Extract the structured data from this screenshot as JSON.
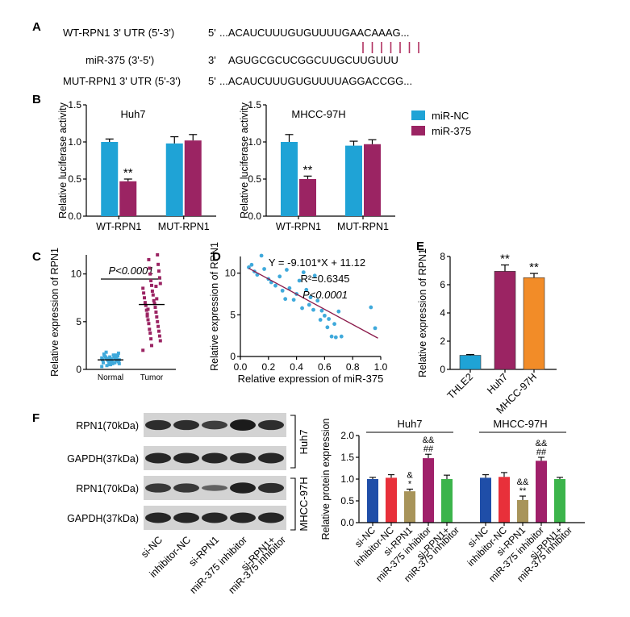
{
  "panels": {
    "A": "A",
    "B": "B",
    "C": "C",
    "D": "D",
    "E": "E",
    "F": "F"
  },
  "panel_a": {
    "rows": [
      {
        "label": "WT-RPN1 3' UTR (5'-3')",
        "prefix": "5'",
        "seq": "...ACAUCUUUGUGUUUUGAACAAAG..."
      },
      {
        "label": "miR-375 (3'-5')",
        "prefix": "3'",
        "seq": "AGUGCGCUCGGCUUGCUUGUUU"
      },
      {
        "label": "MUT-RPN1 3' UTR (5'-3')",
        "prefix": "5'",
        "seq": "...ACAUCUUUGUGUUUUAGGACCGG..."
      }
    ],
    "pair_color": "#b03060"
  },
  "colors": {
    "nc": "#1fa3d6",
    "mir": "#9b2463",
    "d_point": "#3fa9db",
    "d_line": "#8b1a4a",
    "c_point": "#9b2463",
    "c_normal": "#3fa9db",
    "e_thle2": "#1fa3d6",
    "e_huh7": "#9b2463",
    "e_mhcc": "#f28c28",
    "f_si_nc": "#1f4ea8",
    "f_inh_nc": "#e8303a",
    "f_si_rpn1": "#a8945a",
    "f_mir_inh": "#a0206a",
    "f_combo": "#3cb44b"
  },
  "legend": {
    "series1": "miR-NC",
    "series2": "miR-375"
  },
  "chart_data": [
    {
      "id": "B-Huh7",
      "type": "bar",
      "title": "Huh7",
      "ylabel": "Relative luciferase activity",
      "ylim": [
        0,
        1.5
      ],
      "yticks": [
        "0.0",
        "0.5",
        "1.0",
        "1.5"
      ],
      "categories": [
        "WT-RPN1",
        "MUT-RPN1"
      ],
      "series": [
        {
          "name": "miR-NC",
          "values": [
            1.0,
            0.98
          ],
          "err": [
            0.04,
            0.09
          ]
        },
        {
          "name": "miR-375",
          "values": [
            0.47,
            1.02
          ],
          "err": [
            0.03,
            0.08
          ]
        }
      ],
      "annotations": [
        "**",
        ""
      ]
    },
    {
      "id": "B-MHCC-97H",
      "type": "bar",
      "title": "MHCC-97H",
      "ylabel": "Relative luciferase activity",
      "ylim": [
        0,
        1.5
      ],
      "yticks": [
        "0.0",
        "0.5",
        "1.0",
        "1.5"
      ],
      "categories": [
        "WT-RPN1",
        "MUT-RPN1"
      ],
      "series": [
        {
          "name": "miR-NC",
          "values": [
            1.0,
            0.95
          ],
          "err": [
            0.1,
            0.06
          ]
        },
        {
          "name": "miR-375",
          "values": [
            0.5,
            0.97
          ],
          "err": [
            0.04,
            0.06
          ]
        }
      ],
      "annotations": [
        "**",
        ""
      ]
    },
    {
      "id": "C",
      "type": "scatter",
      "ylabel": "Relative expression of RPN1",
      "ylim": [
        0,
        12
      ],
      "yticks": [
        "0",
        "5",
        "10"
      ],
      "categories": [
        "Normal",
        "Tumor"
      ],
      "p_text": "P<0.0001",
      "groups": [
        {
          "name": "Normal",
          "mean": 1.0,
          "values": [
            0.3,
            0.5,
            0.6,
            0.7,
            0.8,
            0.8,
            0.9,
            0.9,
            1.0,
            1.0,
            1.0,
            1.1,
            1.1,
            1.2,
            1.2,
            1.3,
            1.3,
            1.4,
            1.5,
            1.6,
            0.6,
            0.7,
            0.9,
            1.0,
            1.1,
            1.2,
            0.8,
            1.0,
            1.3,
            1.7,
            0.5,
            1.4,
            1.0,
            0.9,
            1.1,
            1.2,
            0.4,
            1.5,
            1.8,
            0.7
          ]
        },
        {
          "name": "Tumor",
          "mean": 6.8,
          "values": [
            2.0,
            2.5,
            3.0,
            3.2,
            3.5,
            3.8,
            4.0,
            4.2,
            4.5,
            4.8,
            5.0,
            5.2,
            5.5,
            5.8,
            6.0,
            6.2,
            6.5,
            6.7,
            6.9,
            7.0,
            7.2,
            7.5,
            7.8,
            8.0,
            8.2,
            8.5,
            8.8,
            9.0,
            9.3,
            9.6,
            10.0,
            10.3,
            10.6,
            11.0,
            11.5,
            12.0,
            6.3,
            7.4,
            5.6,
            8.7
          ]
        }
      ]
    },
    {
      "id": "D",
      "type": "scatter",
      "xlabel": "Relative expression of miR-375",
      "ylabel": "Relative expression of RPN1",
      "xlim": [
        0,
        1
      ],
      "ylim": [
        0,
        12
      ],
      "xticks": [
        "0.0",
        "0.2",
        "0.4",
        "0.6",
        "0.8",
        "1.0"
      ],
      "yticks": [
        "0",
        "5",
        "10"
      ],
      "equation": "Y = -9.101*X + 11.12",
      "r2": "R²=0.6345",
      "p_text": "P<0.0001",
      "slope": -9.101,
      "intercept": 11.12,
      "points": [
        [
          0.06,
          10.7
        ],
        [
          0.08,
          11.0
        ],
        [
          0.1,
          10.2
        ],
        [
          0.12,
          9.8
        ],
        [
          0.15,
          12.1
        ],
        [
          0.17,
          10.5
        ],
        [
          0.2,
          9.3
        ],
        [
          0.22,
          8.9
        ],
        [
          0.25,
          8.5
        ],
        [
          0.28,
          9.6
        ],
        [
          0.3,
          7.9
        ],
        [
          0.32,
          6.9
        ],
        [
          0.33,
          10.4
        ],
        [
          0.35,
          8.2
        ],
        [
          0.38,
          6.8
        ],
        [
          0.4,
          7.5
        ],
        [
          0.42,
          9.1
        ],
        [
          0.44,
          5.8
        ],
        [
          0.45,
          10.1
        ],
        [
          0.47,
          8.0
        ],
        [
          0.49,
          6.2
        ],
        [
          0.5,
          7.1
        ],
        [
          0.52,
          5.6
        ],
        [
          0.53,
          9.7
        ],
        [
          0.55,
          6.7
        ],
        [
          0.57,
          4.4
        ],
        [
          0.58,
          5.5
        ],
        [
          0.6,
          4.9
        ],
        [
          0.62,
          3.5
        ],
        [
          0.63,
          4.5
        ],
        [
          0.65,
          2.4
        ],
        [
          0.67,
          3.9
        ],
        [
          0.68,
          2.3
        ],
        [
          0.7,
          5.4
        ],
        [
          0.72,
          2.4
        ],
        [
          0.93,
          5.9
        ],
        [
          0.96,
          3.4
        ]
      ]
    },
    {
      "id": "E",
      "type": "bar",
      "ylabel": "Relative expression of RPN1",
      "ylim": [
        0,
        8
      ],
      "yticks": [
        "0",
        "2",
        "4",
        "6",
        "8"
      ],
      "categories": [
        "THLE2",
        "Huh7",
        "MHCC-97H"
      ],
      "values": [
        1.0,
        6.95,
        6.5
      ],
      "err": [
        0.05,
        0.45,
        0.3
      ],
      "annotations": [
        "",
        "**",
        "**"
      ]
    },
    {
      "id": "F-Huh7",
      "type": "bar",
      "title": "Huh7",
      "ylabel": "Relative protein expression",
      "ylim": [
        0,
        2.0
      ],
      "yticks": [
        "0.0",
        "0.5",
        "1.0",
        "1.5",
        "2.0"
      ],
      "categories": [
        "si-NC",
        "inhibitor-NC",
        "si-RPN1",
        "miR-375 inhibitor",
        "si-RPN1+ miR-375 inhibitor"
      ],
      "values": [
        1.0,
        1.03,
        0.72,
        1.48,
        1.0
      ],
      "err": [
        0.04,
        0.07,
        0.05,
        0.09,
        0.09
      ],
      "annotations": [
        "",
        "",
        "&\n*",
        "&&\n##",
        ""
      ]
    },
    {
      "id": "F-MHCC-97H",
      "type": "bar",
      "title": "MHCC-97H",
      "ylabel": "Relative protein expression",
      "ylim": [
        0,
        2.0
      ],
      "yticks": [
        "0.0",
        "0.5",
        "1.0",
        "1.5",
        "2.0"
      ],
      "categories": [
        "si-NC",
        "inhibitor-NC",
        "si-RPN1",
        "miR-375 inhibitor",
        "si-RPN1+ miR-375 inhibitor"
      ],
      "values": [
        1.03,
        1.05,
        0.52,
        1.42,
        1.0
      ],
      "err": [
        0.07,
        0.1,
        0.09,
        0.08,
        0.04
      ],
      "annotations": [
        "",
        "",
        "&&\n**",
        "&&\n##",
        ""
      ]
    }
  ],
  "panel_f_blot": {
    "rows": [
      "RPN1(70kDa)",
      "GAPDH(37kDa)",
      "RPN1(70kDa)",
      "GAPDH(37kDa)"
    ],
    "cell_lines": [
      "Huh7",
      "MHCC-97H"
    ],
    "lanes": [
      "si-NC",
      "inhibitor-NC",
      "si-RPN1",
      "miR-375 inhibitor",
      "si-RPN1+ miR-375 inhibitor"
    ],
    "intensity": [
      [
        0.85,
        0.85,
        0.7,
        1.0,
        0.85
      ],
      [
        0.9,
        0.9,
        0.9,
        0.9,
        0.9
      ],
      [
        0.75,
        0.75,
        0.4,
        0.95,
        0.85
      ],
      [
        0.9,
        0.9,
        0.9,
        0.9,
        0.9
      ]
    ]
  }
}
